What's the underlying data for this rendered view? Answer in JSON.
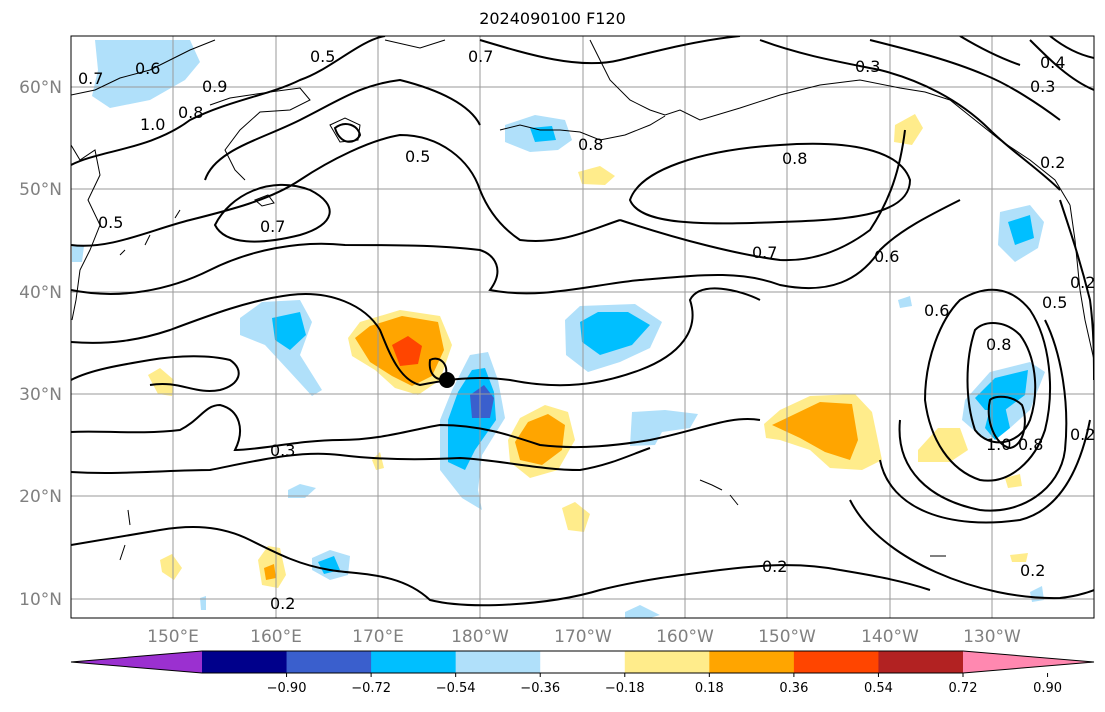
{
  "title": "2024090100 F120",
  "lat_labels": [
    "60°N",
    "50°N",
    "40°N",
    "30°N",
    "20°N",
    "10°N"
  ],
  "lon_labels": [
    "150°E",
    "160°E",
    "170°E",
    "180°W",
    "170°W",
    "160°W",
    "150°W",
    "140°W",
    "130°W"
  ],
  "colorbar": {
    "ticks": [
      "−0.90",
      "−0.72",
      "−0.54",
      "−0.36",
      "−0.18",
      "0.18",
      "0.36",
      "0.54",
      "0.72",
      "0.90"
    ],
    "colors": [
      "#9b30d0",
      "#00008b",
      "#3a5fcd",
      "#00bfff",
      "#b0e0fa",
      "#ffffff",
      "#ffec8b",
      "#ffa500",
      "#ff4500",
      "#b22222",
      "#ff88b0"
    ]
  },
  "contour_labels": [
    "0.7",
    "0.6",
    "1.0",
    "0.8",
    "0.9",
    "0.5",
    "0.7",
    "0.5",
    "0.5",
    "0.7",
    "0.8",
    "0.3",
    "0.3",
    "0.4",
    "0.8",
    "0.7",
    "0.6",
    "0.6",
    "0.5",
    "0.2",
    "0.2",
    "0.8",
    "1.0",
    "0.8",
    "0.2",
    "0.3",
    "0.2",
    "0.2",
    "0.2"
  ],
  "marker": "black dot"
}
